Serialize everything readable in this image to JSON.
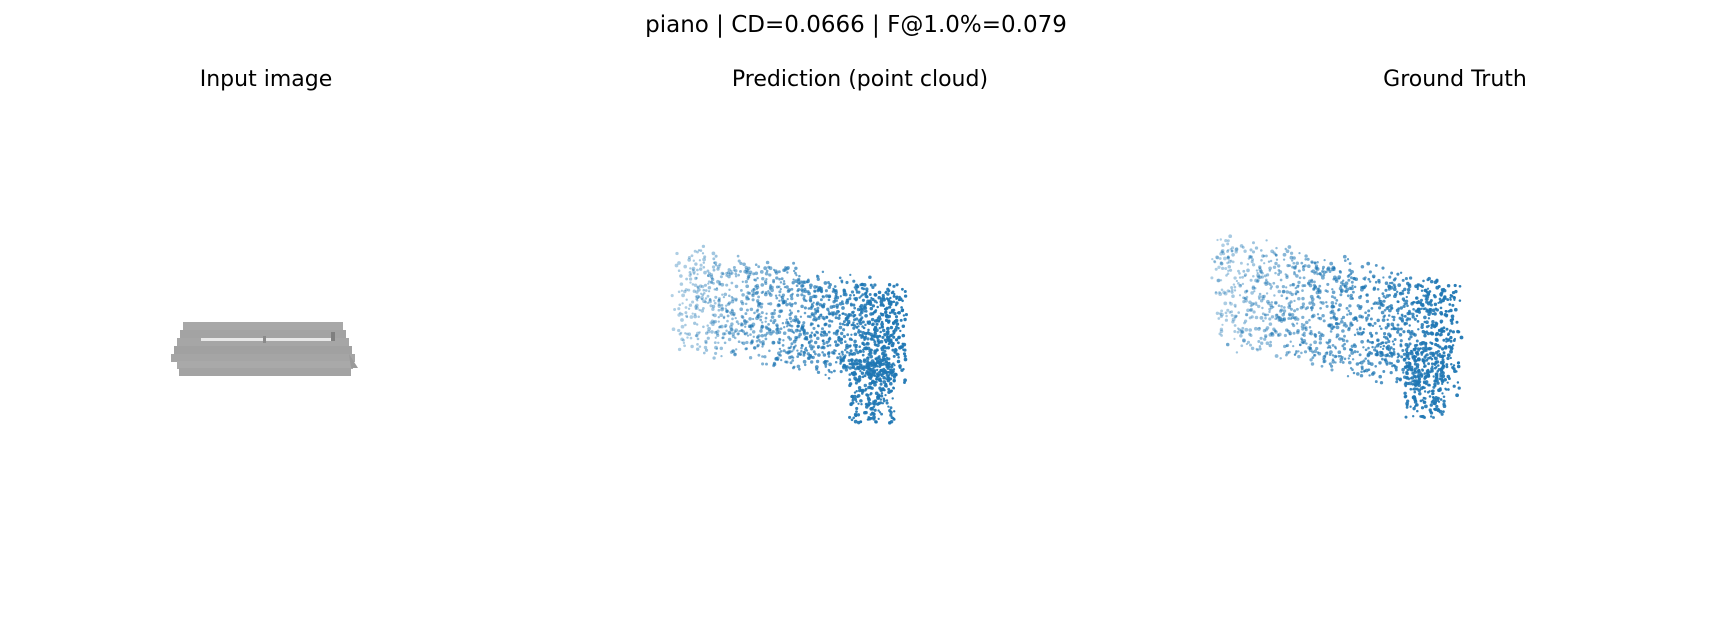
{
  "figure": {
    "suptitle": "piano | CD=0.0666 | F@1.0%=0.079",
    "panels": [
      {
        "title": "Input image"
      },
      {
        "title": "Prediction (point cloud)"
      },
      {
        "title": "Ground Truth"
      }
    ]
  },
  "colors": {
    "point_color": "#1f77b4",
    "render_gray": "#a6a6a6",
    "render_gray_dark": "#8f8f8f",
    "render_highlight": "#e6e6e6"
  }
}
